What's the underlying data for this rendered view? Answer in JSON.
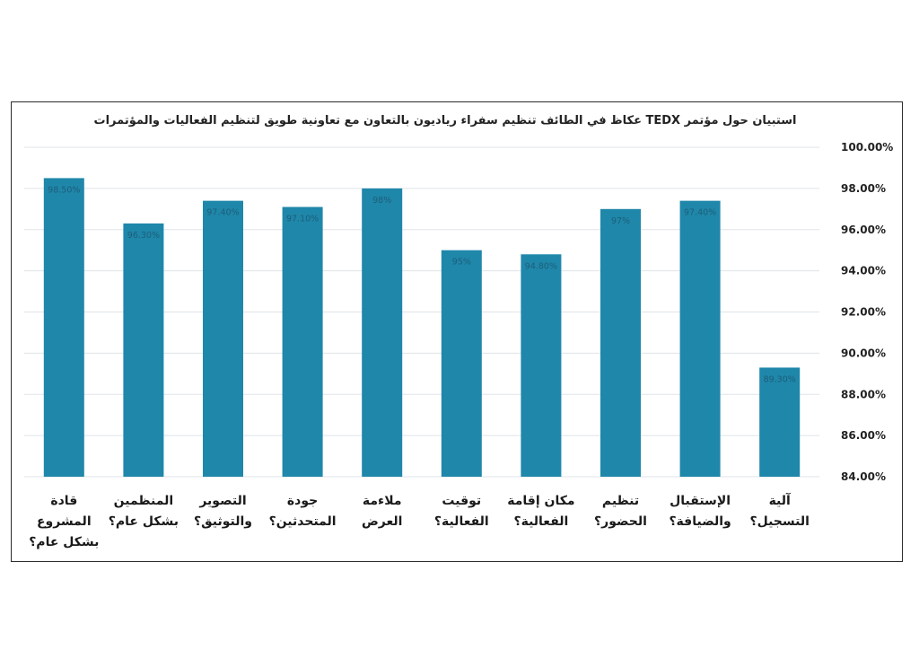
{
  "chart_data": {
    "type": "bar",
    "title": "استبيان حول مؤتمر TEDX عكاظ في الطائف تنظيم سفراء رياديون بالتعاون مع تعاونية طويق لتنظيم الفعاليات والمؤتمرات",
    "xlabel": "",
    "ylabel": "",
    "ylim": [
      84,
      100
    ],
    "y_ticks": [
      "84.00%",
      "86.00%",
      "88.00%",
      "90.00%",
      "92.00%",
      "94.00%",
      "96.00%",
      "98.00%",
      "100.00%"
    ],
    "y_axis_side": "right",
    "grid": true,
    "bar_color": "#1f87aa",
    "categories": [
      [
        "قادة",
        "المشروع",
        "بشكل عام؟"
      ],
      [
        "المنظمين",
        "بشكل عام؟"
      ],
      [
        "التصوير",
        "والتوثيق؟"
      ],
      [
        "جودة",
        "المتحدثين؟"
      ],
      [
        "ملاءمة",
        "العرض"
      ],
      [
        "توقيت",
        "الفعالية؟"
      ],
      [
        "مكان إقامة",
        "الفعالية؟"
      ],
      [
        "تنظيم",
        "الحضور؟"
      ],
      [
        "الإستقبال",
        "والضيافة؟"
      ],
      [
        "آلية",
        "التسجيل؟"
      ]
    ],
    "values": [
      98.5,
      96.3,
      97.4,
      97.1,
      98,
      95,
      94.8,
      97,
      97.4,
      89.3
    ],
    "data_labels": [
      "98.50%",
      "96.30%",
      "97.40%",
      "97.10%",
      "98%",
      "95%",
      "94.80%",
      "97%",
      "97.40%",
      "89.30%"
    ]
  }
}
